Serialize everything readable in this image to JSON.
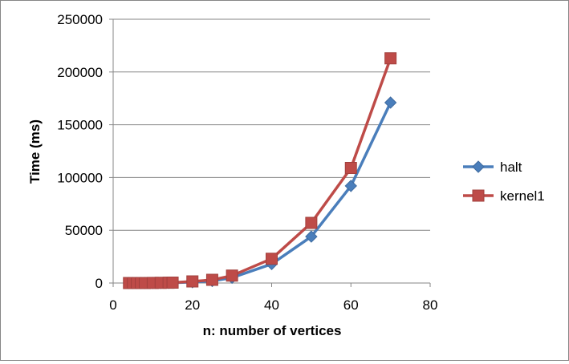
{
  "chart_data": {
    "type": "line",
    "title": "",
    "xlabel": "n: number of vertices",
    "ylabel": "Time (ms)",
    "xlim": [
      0,
      80
    ],
    "ylim": [
      0,
      250000
    ],
    "x_ticks": [
      0,
      20,
      40,
      60,
      80
    ],
    "y_ticks": [
      0,
      50000,
      100000,
      150000,
      200000,
      250000
    ],
    "x_tick_labels": [
      "0",
      "20",
      "40",
      "60",
      "80"
    ],
    "y_tick_labels": [
      "0",
      "50000",
      "100000",
      "150000",
      "200000",
      "250000"
    ],
    "grid": "horizontal",
    "legend_position": "right",
    "series": [
      {
        "name": "halt",
        "color": "#4A7EBB",
        "marker": "diamond",
        "x": [
          4,
          5,
          6,
          7,
          8,
          10,
          12,
          14,
          15,
          20,
          25,
          30,
          40,
          50,
          60,
          70
        ],
        "y": [
          0,
          0,
          0,
          0,
          0,
          50,
          100,
          200,
          300,
          800,
          2000,
          5000,
          18000,
          44000,
          92000,
          171000
        ]
      },
      {
        "name": "kernel1",
        "color": "#BE4B48",
        "marker": "square",
        "x": [
          4,
          5,
          6,
          7,
          8,
          10,
          12,
          14,
          15,
          20,
          25,
          30,
          40,
          50,
          60,
          70
        ],
        "y": [
          0,
          0,
          0,
          0,
          0,
          100,
          200,
          300,
          400,
          1500,
          3000,
          7000,
          23000,
          57000,
          109000,
          213000
        ]
      }
    ]
  }
}
